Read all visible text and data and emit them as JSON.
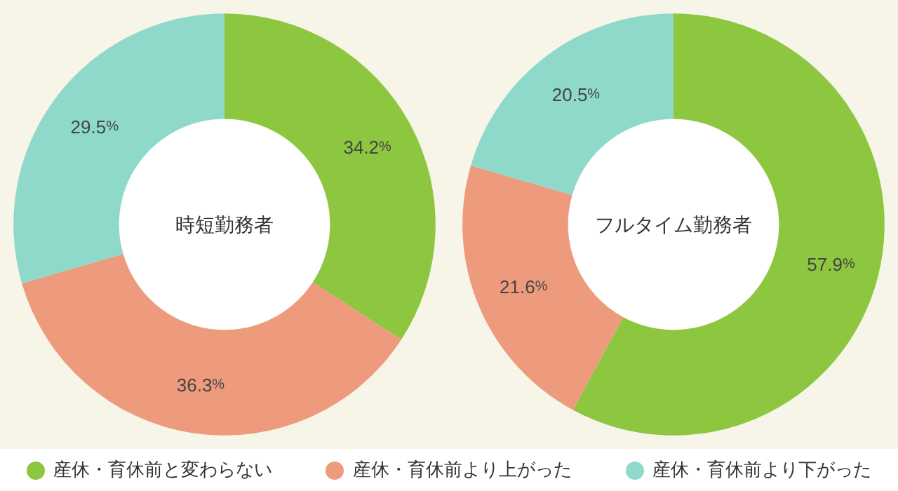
{
  "chart_data": [
    {
      "type": "donut",
      "title": "時短勤務者",
      "categories": [
        "産休・育休前と変わらない",
        "産休・育休前より上がった",
        "産休・育休前より下がった"
      ],
      "values": [
        34.2,
        36.3,
        29.5
      ],
      "value_labels": [
        "34.2%",
        "36.3%",
        "29.5%"
      ],
      "colors": [
        "#8dc63f",
        "#ee9a7c",
        "#8fd9cb"
      ],
      "legend": "bottom"
    },
    {
      "type": "donut",
      "title": "フルタイム勤務者",
      "categories": [
        null,
        null,
        null
      ],
      "values": [
        57.9,
        21.6,
        20.5
      ],
      "value_labels": [
        "57.9%",
        "21.6%",
        "20.5%"
      ],
      "colors": [
        "#8dc63f",
        "#ee9a7c",
        "#8fd9cb"
      ]
    }
  ]
}
